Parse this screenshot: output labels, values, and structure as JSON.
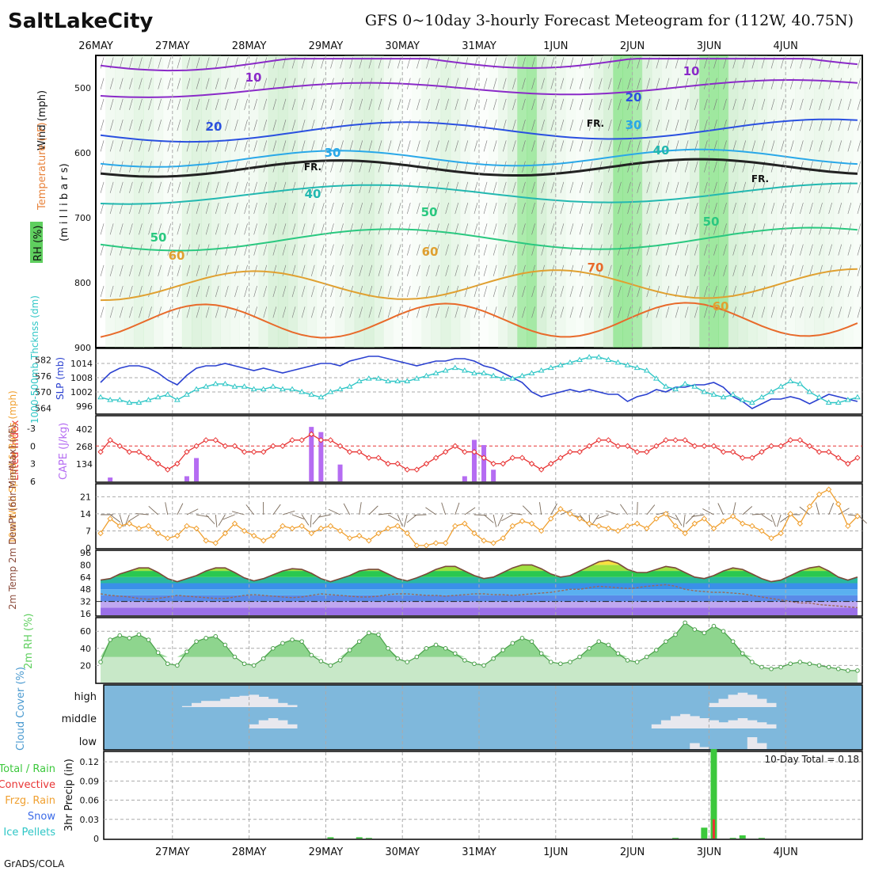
{
  "header": {
    "city": "SaltLakeCity",
    "title": "GFS 0~10day 3-hourly Forecast Meteogram for (112W, 40.75N)",
    "credit": "GrADS/COLA"
  },
  "colors": {
    "temperature": "#e8823a",
    "humidity": "#5fcf5f",
    "thickness": "#2ec6c6",
    "slp": "#2a40d0",
    "lifted": "#e83434",
    "cape": "#b56cf2",
    "wind10m": "#f0a030",
    "barbs": "#7a6a5a",
    "cloud_bg": "#7fb8dc",
    "precip_total": "#3cc83c",
    "precip_conv": "#e83434"
  },
  "date_labels_top": [
    "26MAY",
    "27MAY",
    "28MAY",
    "29MAY",
    "30MAY",
    "31MAY",
    "1JUN",
    "2JUN",
    "3JUN",
    "4JUN"
  ],
  "date_labels_bottom": [
    "27MAY",
    "28MAY",
    "29MAY",
    "30MAY",
    "31MAY",
    "1JUN",
    "2JUN",
    "3JUN",
    "4JUN"
  ],
  "panels": {
    "upper": {
      "ylabel_wind": "Wind (mph)",
      "ylabel_temp": "Temperature (°F)",
      "ylabel_rh": "RH (%)",
      "ylabel_mb": "(m i l l i b a r s)",
      "ticks": [
        "500",
        "600",
        "700",
        "800",
        "900"
      ],
      "freezing_label": "FR.",
      "isotherm_labels": [
        "10",
        "20",
        "30",
        "40",
        "50",
        "60",
        "70"
      ],
      "wind_labels": [
        "10",
        "20",
        "30"
      ]
    },
    "thickness": {
      "ylabel_left": "1000-500mb Thcknss (dm)",
      "ylabel_right": "SLP (mb)",
      "ticks_left": [
        "582",
        "576",
        "570",
        "564"
      ],
      "ticks_right": [
        "1014",
        "1008",
        "1002",
        "996"
      ]
    },
    "stability": {
      "ylabel_left": "Lifted Index",
      "ylabel_right": "CAPE (J/kg)",
      "ticks_left": [
        "-3",
        "0",
        "3",
        "6"
      ],
      "ticks_right": [
        "402",
        "268",
        "134"
      ]
    },
    "wind": {
      "ylabel": "10m Wind Speed & Barbs (mph)",
      "ticks": [
        "21",
        "14",
        "7",
        "0"
      ]
    },
    "temp": {
      "ylabel": "2m Temp 2m DewPt (6hr Min/Max) (°F)",
      "ticks": [
        "96",
        "80",
        "64",
        "48",
        "32",
        "16"
      ]
    },
    "rh": {
      "ylabel": "2m RH (%)",
      "ticks": [
        "60",
        "40",
        "20"
      ]
    },
    "cloud": {
      "ylabel": "Cloud Cover (%)",
      "levels": [
        "high",
        "middle",
        "low"
      ]
    },
    "precip": {
      "ylabel": "3hr Precip (in)",
      "ticks": [
        "0.12",
        "0.09",
        "0.06",
        "0.03",
        "0"
      ],
      "total_text": "10-Day Total = 0.18",
      "legend": [
        "Total / Rain",
        "Convective",
        "Frzg. Rain",
        "Snow",
        "Ice Pellets"
      ]
    }
  },
  "chart_data": {
    "type": "line",
    "x_unit": "3-hourly steps from 26MAY 00Z",
    "time_steps": 80,
    "slp_mb": [
      1006,
      1010,
      1012,
      1013,
      1013,
      1012,
      1010,
      1007,
      1005,
      1009,
      1012,
      1013,
      1013,
      1014,
      1013,
      1012,
      1011,
      1012,
      1011,
      1010,
      1011,
      1012,
      1013,
      1014,
      1014,
      1013,
      1015,
      1016,
      1017,
      1017,
      1016,
      1015,
      1014,
      1013,
      1014,
      1015,
      1015,
      1016,
      1016,
      1015,
      1013,
      1012,
      1010,
      1008,
      1006,
      1002,
      1000,
      1001,
      1002,
      1003,
      1002,
      1003,
      1002,
      1001,
      1001,
      998,
      1000,
      1001,
      1003,
      1002,
      1004,
      1004,
      1005,
      1005,
      1006,
      1004,
      1000,
      998,
      995,
      997,
      999,
      999,
      1000,
      999,
      997,
      999,
      1001,
      1000,
      999,
      998
    ],
    "thickness_dm": [
      568,
      567,
      567,
      566,
      566,
      567,
      568,
      569,
      567,
      569,
      571,
      572,
      573,
      573,
      572,
      572,
      571,
      571,
      572,
      571,
      571,
      570,
      569,
      568,
      570,
      571,
      572,
      574,
      575,
      575,
      574,
      574,
      574,
      575,
      576,
      577,
      578,
      579,
      578,
      577,
      577,
      576,
      575,
      575,
      576,
      577,
      578,
      579,
      580,
      581,
      582,
      583,
      583,
      582,
      581,
      580,
      579,
      578,
      575,
      572,
      571,
      573,
      572,
      570,
      569,
      568,
      569,
      567,
      566,
      568,
      570,
      572,
      574,
      573,
      570,
      568,
      566,
      566,
      567,
      568
    ],
    "lifted_index": [
      1,
      -1,
      0,
      1,
      1,
      2,
      3,
      4,
      3,
      1,
      0,
      -1,
      -1,
      0,
      0,
      1,
      1,
      1,
      0,
      0,
      -1,
      -1,
      -2,
      -1,
      -1,
      0,
      1,
      1,
      2,
      2,
      3,
      3,
      4,
      4,
      3,
      2,
      1,
      0,
      1,
      1,
      2,
      3,
      3,
      2,
      2,
      3,
      4,
      3,
      2,
      1,
      1,
      0,
      -1,
      -1,
      0,
      0,
      1,
      1,
      0,
      -1,
      -1,
      -1,
      0,
      0,
      0,
      1,
      1,
      2,
      2,
      1,
      0,
      0,
      -1,
      -1,
      0,
      1,
      1,
      2,
      3,
      2
    ],
    "cape_jkg": [
      0,
      30,
      0,
      0,
      0,
      0,
      0,
      0,
      0,
      40,
      180,
      0,
      0,
      0,
      0,
      0,
      0,
      0,
      0,
      0,
      0,
      0,
      420,
      380,
      0,
      130,
      0,
      0,
      0,
      0,
      0,
      0,
      0,
      0,
      0,
      0,
      0,
      0,
      40,
      320,
      280,
      90,
      0,
      0,
      0,
      0,
      0,
      0,
      0,
      0,
      0,
      0,
      0,
      0,
      0,
      0,
      0,
      0,
      0,
      0,
      0,
      0,
      0,
      0,
      0,
      0,
      0,
      0,
      0,
      0,
      0,
      0,
      0,
      0,
      0,
      0,
      0,
      0,
      0,
      0
    ],
    "wind10m_mph": [
      6,
      12,
      9,
      10,
      8,
      9,
      6,
      4,
      5,
      9,
      8,
      3,
      2,
      6,
      10,
      7,
      5,
      3,
      5,
      9,
      8,
      9,
      6,
      8,
      9,
      7,
      4,
      5,
      3,
      6,
      8,
      9,
      6,
      1,
      1,
      2,
      2,
      9,
      10,
      6,
      3,
      2,
      4,
      9,
      11,
      10,
      7,
      12,
      16,
      14,
      12,
      10,
      9,
      8,
      7,
      9,
      10,
      8,
      12,
      14,
      9,
      6,
      10,
      12,
      8,
      11,
      13,
      10,
      9,
      7,
      4,
      6,
      14,
      10,
      17,
      22,
      24,
      18,
      9,
      13
    ],
    "temp2m_f": [
      60,
      62,
      68,
      72,
      76,
      76,
      70,
      62,
      58,
      62,
      66,
      72,
      76,
      76,
      70,
      63,
      59,
      62,
      67,
      72,
      75,
      74,
      69,
      62,
      58,
      62,
      66,
      72,
      74,
      74,
      68,
      62,
      59,
      63,
      68,
      74,
      78,
      78,
      72,
      66,
      62,
      64,
      70,
      76,
      80,
      80,
      75,
      68,
      64,
      66,
      72,
      78,
      84,
      86,
      82,
      74,
      70,
      70,
      74,
      78,
      76,
      70,
      64,
      62,
      66,
      72,
      76,
      74,
      68,
      62,
      58,
      60,
      66,
      72,
      76,
      78,
      72,
      64,
      60,
      64
    ],
    "dewpt2m_f": [
      42,
      40,
      39,
      38,
      36,
      35,
      36,
      38,
      40,
      39,
      38,
      37,
      36,
      36,
      38,
      40,
      41,
      40,
      39,
      38,
      37,
      38,
      40,
      42,
      41,
      40,
      39,
      38,
      38,
      39,
      41,
      42,
      42,
      41,
      40,
      40,
      39,
      40,
      41,
      42,
      42,
      41,
      41,
      40,
      41,
      42,
      43,
      44,
      46,
      48,
      48,
      50,
      52,
      51,
      50,
      49,
      50,
      52,
      53,
      54,
      52,
      48,
      46,
      45,
      44,
      44,
      43,
      42,
      40,
      38,
      36,
      34,
      32,
      30,
      30,
      28,
      27,
      26,
      25,
      24
    ],
    "rh2m_pct": [
      24,
      50,
      55,
      52,
      56,
      50,
      35,
      22,
      20,
      36,
      48,
      52,
      54,
      44,
      30,
      22,
      20,
      28,
      40,
      46,
      50,
      48,
      32,
      25,
      20,
      26,
      38,
      48,
      58,
      56,
      40,
      28,
      24,
      30,
      40,
      44,
      40,
      34,
      26,
      22,
      20,
      28,
      38,
      46,
      52,
      48,
      34,
      24,
      22,
      24,
      30,
      40,
      48,
      44,
      34,
      26,
      24,
      30,
      38,
      48,
      56,
      70,
      62,
      58,
      66,
      60,
      48,
      34,
      24,
      18,
      16,
      18,
      22,
      24,
      22,
      20,
      18,
      16,
      14,
      14
    ],
    "cloud_high_pct": [
      0,
      0,
      0,
      0,
      0,
      0,
      0,
      0,
      0,
      5,
      20,
      30,
      30,
      40,
      50,
      55,
      60,
      50,
      40,
      20,
      10,
      0,
      0,
      0,
      0,
      0,
      0,
      0,
      0,
      0,
      0,
      0,
      0,
      0,
      0,
      0,
      0,
      0,
      0,
      0,
      0,
      0,
      0,
      0,
      0,
      0,
      0,
      0,
      0,
      0,
      0,
      0,
      0,
      0,
      0,
      0,
      0,
      0,
      0,
      0,
      0,
      0,
      0,
      0,
      20,
      40,
      60,
      70,
      60,
      40,
      20,
      0,
      0,
      0,
      0,
      0,
      0,
      0,
      0,
      0
    ],
    "cloud_mid_pct": [
      0,
      0,
      0,
      0,
      0,
      0,
      0,
      0,
      0,
      0,
      0,
      0,
      0,
      0,
      0,
      0,
      20,
      40,
      50,
      40,
      20,
      0,
      0,
      0,
      0,
      0,
      0,
      0,
      0,
      0,
      0,
      0,
      0,
      0,
      0,
      0,
      0,
      0,
      0,
      0,
      0,
      0,
      0,
      0,
      0,
      0,
      0,
      0,
      0,
      0,
      0,
      0,
      0,
      0,
      0,
      0,
      0,
      0,
      20,
      40,
      60,
      70,
      60,
      50,
      40,
      30,
      40,
      50,
      40,
      30,
      20,
      0,
      0,
      0,
      0,
      0,
      0,
      0,
      0,
      0
    ],
    "cloud_low_pct": [
      0,
      0,
      0,
      0,
      0,
      0,
      0,
      0,
      0,
      0,
      0,
      0,
      0,
      0,
      0,
      0,
      0,
      0,
      0,
      0,
      0,
      0,
      0,
      0,
      0,
      0,
      0,
      0,
      0,
      0,
      0,
      0,
      0,
      0,
      0,
      0,
      0,
      0,
      0,
      0,
      0,
      0,
      0,
      0,
      0,
      0,
      0,
      0,
      0,
      0,
      0,
      0,
      0,
      0,
      0,
      0,
      0,
      0,
      0,
      0,
      0,
      0,
      30,
      10,
      0,
      0,
      0,
      0,
      60,
      30,
      0,
      0,
      0,
      0,
      0,
      0,
      0,
      0,
      0,
      0
    ],
    "precip_total_in": [
      0,
      0,
      0,
      0,
      0,
      0,
      0,
      0,
      0,
      0,
      0,
      0,
      0,
      0,
      0,
      0,
      0,
      0,
      0,
      0,
      0,
      0,
      0,
      0,
      0.002,
      0,
      0,
      0.002,
      0.001,
      0,
      0,
      0,
      0,
      0,
      0,
      0,
      0,
      0,
      0,
      0,
      0,
      0,
      0,
      0,
      0,
      0,
      0,
      0,
      0,
      0,
      0,
      0,
      0,
      0,
      0,
      0,
      0,
      0,
      0,
      0,
      0.001,
      0,
      0,
      0.017,
      0.14,
      0,
      0.001,
      0.005,
      0,
      0.001,
      0,
      0,
      0,
      0,
      0,
      0,
      0,
      0,
      0,
      0
    ],
    "precip_conv_in": [
      0,
      0,
      0,
      0,
      0,
      0,
      0,
      0,
      0,
      0,
      0,
      0,
      0,
      0,
      0,
      0,
      0,
      0,
      0,
      0,
      0,
      0,
      0,
      0,
      0,
      0,
      0,
      0,
      0,
      0,
      0,
      0,
      0,
      0,
      0,
      0,
      0,
      0,
      0,
      0,
      0,
      0,
      0,
      0,
      0,
      0,
      0,
      0,
      0,
      0,
      0,
      0,
      0,
      0,
      0,
      0,
      0,
      0,
      0,
      0,
      0,
      0,
      0,
      0,
      0.03,
      0,
      0,
      0,
      0,
      0,
      0,
      0,
      0,
      0,
      0,
      0,
      0,
      0,
      0,
      0
    ]
  }
}
